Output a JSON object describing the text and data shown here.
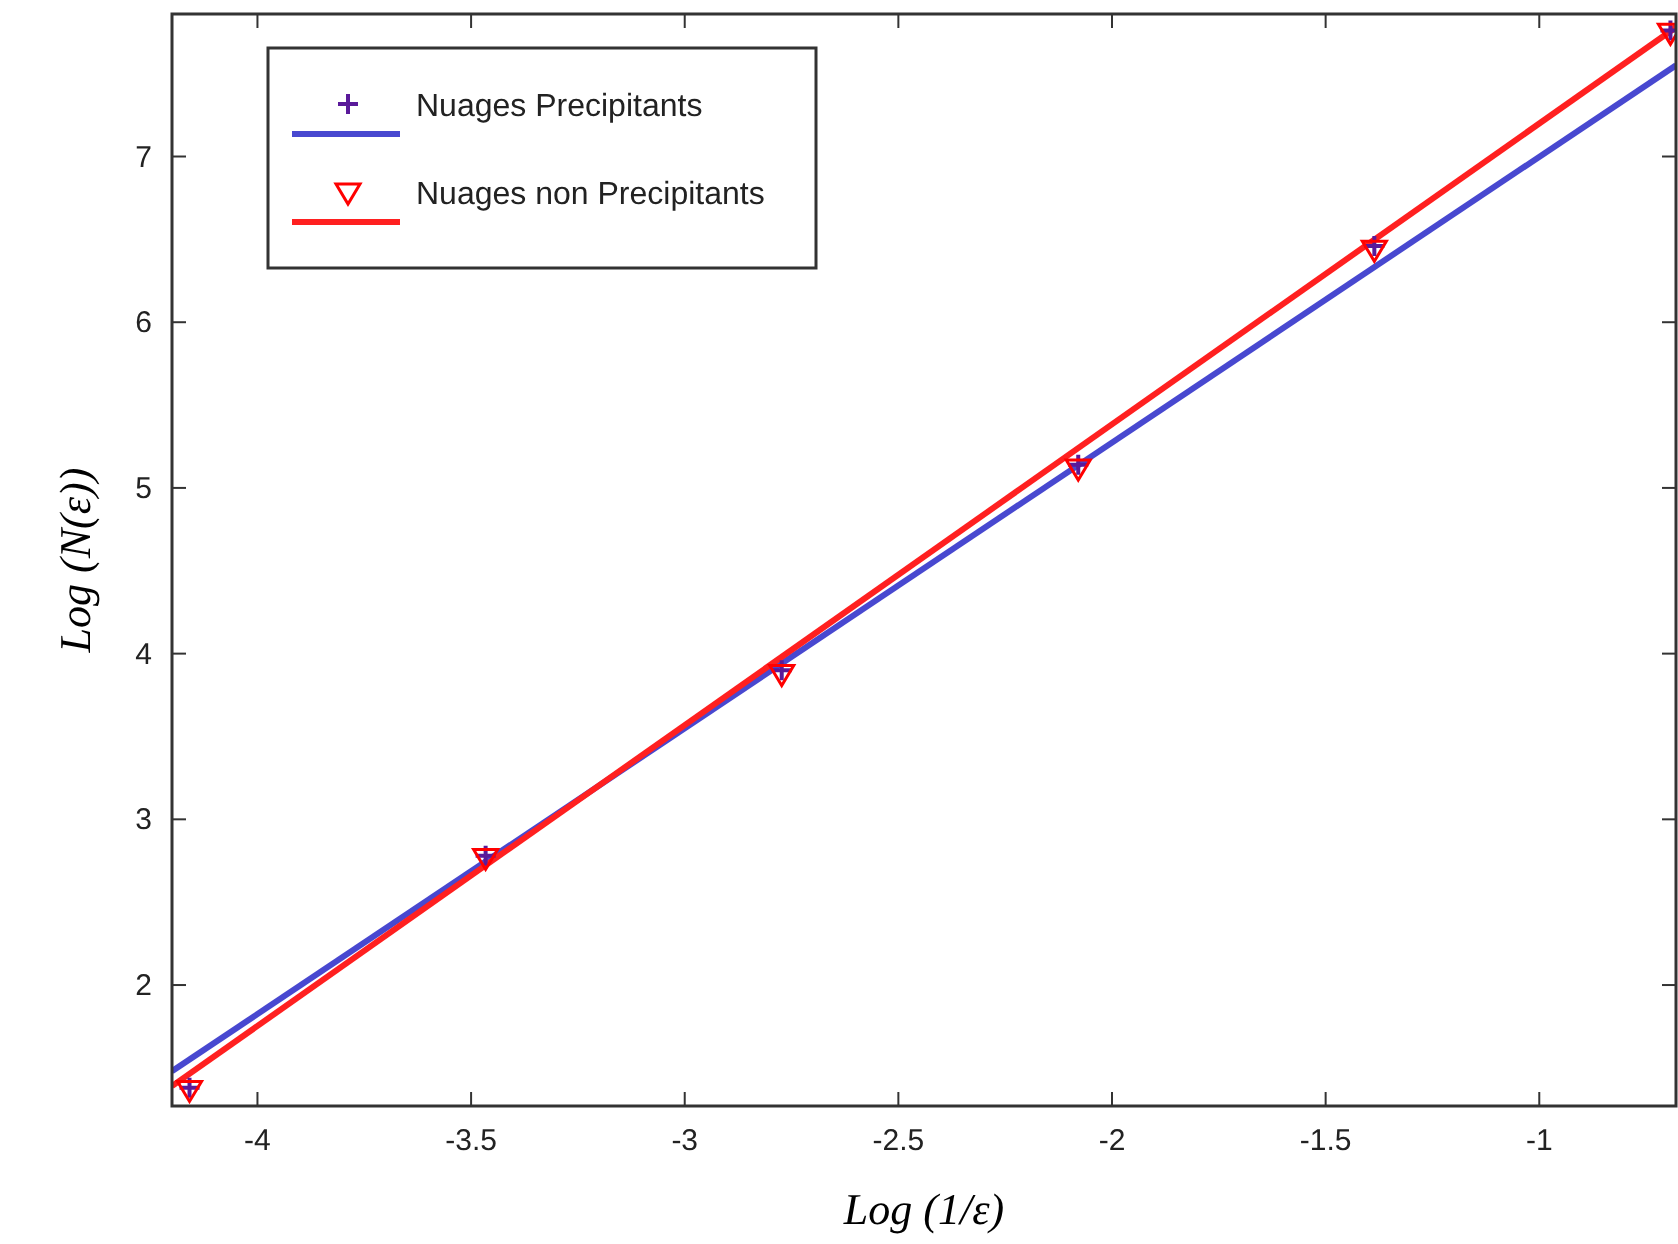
{
  "chart_data": {
    "type": "scatter",
    "xlabel": "Log (1/ε)",
    "ylabel": "Log (N(ε))",
    "xlim": [
      -4.2,
      -0.68
    ],
    "ylim": [
      1.27,
      7.86
    ],
    "xticks": [
      -4,
      -3.5,
      -3,
      -2.5,
      -2,
      -1.5,
      -1
    ],
    "yticks": [
      2,
      3,
      4,
      5,
      6,
      7
    ],
    "grid": false,
    "legend": "top left",
    "series": [
      {
        "name": "Nuages Precipitants",
        "marker": "cross",
        "color": "#5a1a9a",
        "x": [
          -4.159,
          -3.466,
          -2.773,
          -2.079,
          -1.386,
          -0.693
        ],
        "values": [
          1.38,
          2.78,
          3.9,
          5.14,
          6.46,
          7.76
        ]
      },
      {
        "name": "Nuages non Precipitants",
        "marker": "triangle",
        "color": "#ff0000",
        "x": [
          -4.159,
          -3.466,
          -2.773,
          -2.079,
          -1.386,
          -0.693
        ],
        "values": [
          1.37,
          2.77,
          3.88,
          5.12,
          6.44,
          7.75
        ]
      },
      {
        "type": "line",
        "marker": "none",
        "color": "#4848d0",
        "x": [
          -4.2,
          -0.68
        ],
        "values": [
          1.48,
          7.55
        ]
      },
      {
        "type": "line",
        "marker": "none",
        "color": "#ff2020",
        "x": [
          -4.2,
          -0.68
        ],
        "values": [
          1.39,
          7.78
        ]
      }
    ]
  }
}
